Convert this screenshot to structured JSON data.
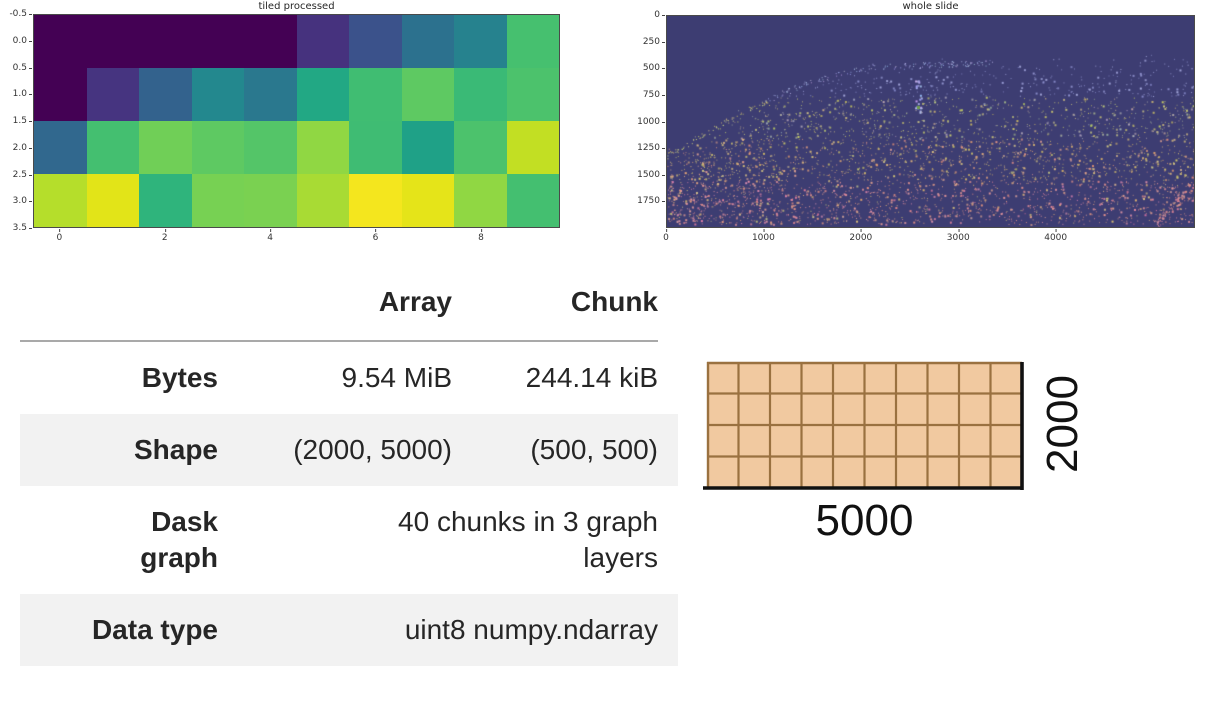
{
  "figure1": {
    "title": "tiled processed",
    "x_ticks": [
      "0",
      "2",
      "4",
      "6",
      "8"
    ],
    "y_ticks": [
      "-0.5",
      "0.0",
      "0.5",
      "1.0",
      "1.5",
      "2.0",
      "2.5",
      "3.0",
      "3.5"
    ],
    "cell_colors": [
      [
        "#440154",
        "#440154",
        "#440154",
        "#440154",
        "#440154",
        "#46327e",
        "#3b528b",
        "#2c718e",
        "#26828e",
        "#46c06f"
      ],
      [
        "#440154",
        "#463480",
        "#33628d",
        "#23888e",
        "#2a788e",
        "#22a884",
        "#40bd72",
        "#5ec962",
        "#3aba76",
        "#4cc26c"
      ],
      [
        "#31688e",
        "#44bf70",
        "#70cf57",
        "#5ec962",
        "#54c568",
        "#90d743",
        "#3fbc73",
        "#1fa187",
        "#4cc26c",
        "#c2df23"
      ],
      [
        "#b5de2b",
        "#e2e418",
        "#2fb47c",
        "#77d153",
        "#7ad151",
        "#a8db34",
        "#f4e61e",
        "#e5e419",
        "#90d743",
        "#44bf70"
      ]
    ]
  },
  "figure2": {
    "title": "whole slide",
    "x_ticks": [
      "0",
      "1000",
      "2000",
      "3000",
      "4000"
    ],
    "y_ticks": [
      "0",
      "250",
      "500",
      "750",
      "1000",
      "1250",
      "1500",
      "1750"
    ],
    "x_max": 5430,
    "y_max": 2000,
    "bg_color": "#3d3d72",
    "dot_colors": {
      "top_blue": "#8c8fd0",
      "mid_olive": "#bdb968",
      "tan": "#c89a6e",
      "salmon": "#d58f86",
      "pink": "#cf7f99",
      "green_spot": "#6f9c49"
    }
  },
  "dask_table": {
    "col_array": "Array",
    "col_chunk": "Chunk",
    "rows": [
      {
        "label": "Bytes",
        "array": "9.54 MiB",
        "chunk": "244.14 kiB"
      },
      {
        "label": "Shape",
        "array": "(2000, 5000)",
        "chunk": "(500, 500)"
      },
      {
        "label": "Dask graph",
        "value": "40 chunks in 3 graph layers"
      },
      {
        "label": "Data type",
        "value": "uint8 numpy.ndarray"
      }
    ]
  },
  "chunk_diagram": {
    "cols": 10,
    "rows": 4,
    "width_label": "5000",
    "height_label": "2000",
    "fill": "#f1c9a0",
    "grid_stroke": "#9a7140",
    "edge_stroke": "#111111"
  },
  "chart_data": [
    {
      "type": "heatmap",
      "title": "tiled processed",
      "colormap": "viridis",
      "grid_shape": [
        4,
        10
      ],
      "x_ticks": [
        0,
        2,
        4,
        6,
        8
      ],
      "y_ticks": [
        -0.5,
        0.0,
        0.5,
        1.0,
        1.5,
        2.0,
        2.5,
        3.0,
        3.5
      ],
      "x_range": [
        -0.5,
        9.5
      ],
      "y_range": [
        3.5,
        -0.5
      ],
      "values_normalized_estimate": [
        [
          0.02,
          0.02,
          0.02,
          0.02,
          0.02,
          0.13,
          0.26,
          0.4,
          0.45,
          0.7
        ],
        [
          0.02,
          0.14,
          0.3,
          0.5,
          0.4,
          0.62,
          0.7,
          0.76,
          0.69,
          0.72
        ],
        [
          0.3,
          0.7,
          0.8,
          0.76,
          0.74,
          0.84,
          0.69,
          0.55,
          0.72,
          0.9
        ],
        [
          0.89,
          0.94,
          0.65,
          0.79,
          0.8,
          0.86,
          0.98,
          0.95,
          0.84,
          0.7
        ]
      ]
    },
    {
      "type": "image",
      "title": "whole slide",
      "x_ticks": [
        0,
        1000,
        2000,
        3000,
        4000
      ],
      "y_ticks": [
        0,
        250,
        500,
        750,
        1000,
        1250,
        1500,
        1750
      ],
      "x_range": [
        0,
        5430
      ],
      "y_range": [
        2000,
        0
      ],
      "annotation": "dark indigo slide with sparse stained dots: bluish near tissue edge, yellow-olive mid-depth, salmon-pink dense toward bottom; tissue boundary arcs from lower-left up to middle"
    },
    {
      "type": "table",
      "title": "dask array summary",
      "columns": [
        "",
        "Array",
        "Chunk"
      ],
      "rows": [
        [
          "Bytes",
          "9.54 MiB",
          "244.14 kiB"
        ],
        [
          "Shape",
          "(2000, 5000)",
          "(500, 500)"
        ],
        [
          "Dask graph",
          "40 chunks in 3 graph layers",
          ""
        ],
        [
          "Data type",
          "uint8 numpy.ndarray",
          ""
        ]
      ]
    }
  ]
}
